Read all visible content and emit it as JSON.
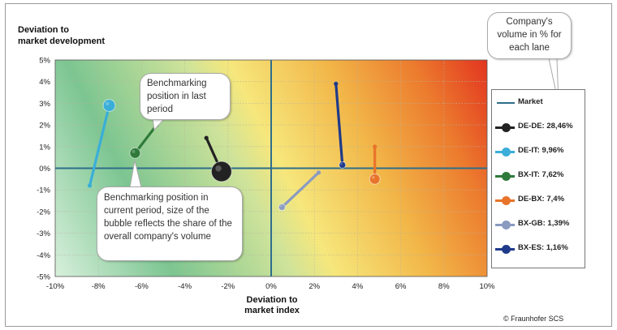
{
  "chart_data": {
    "type": "scatter",
    "title": "",
    "ylabel": "Deviation to market development",
    "xlabel": "Deviation to market index",
    "xlim": [
      -10,
      10
    ],
    "ylim": [
      -5,
      5
    ],
    "xticks": [
      "-10%",
      "-8%",
      "-6%",
      "-4%",
      "-2%",
      "0%",
      "2%",
      "4%",
      "6%",
      "8%",
      "10%"
    ],
    "yticks": [
      "5%",
      "4%",
      "3%",
      "2%",
      "1%",
      "0%",
      "-1%",
      "-2%",
      "-3%",
      "-4%",
      "-5%"
    ],
    "grid": true,
    "legend_position": "right",
    "market_line": {
      "label": "Market",
      "color": "#2e6e8a"
    },
    "series": [
      {
        "name": "DE-DE: 28,46%",
        "color": "#222222",
        "last": [
          -3,
          1.4
        ],
        "current": [
          -2.3,
          -0.15
        ],
        "volume": 28.46
      },
      {
        "name": "DE-IT: 9,96%",
        "color": "#3aaed8",
        "last": [
          -8.4,
          -0.8
        ],
        "current": [
          -7.5,
          2.9
        ],
        "volume": 9.96
      },
      {
        "name": "BX-IT: 7,62%",
        "color": "#2f7a3a",
        "last": [
          -5.3,
          2.0
        ],
        "current": [
          -6.3,
          0.7
        ],
        "volume": 7.62
      },
      {
        "name": "DE-BX: 7,4%",
        "color": "#e8742a",
        "last": [
          4.8,
          1.0
        ],
        "current": [
          4.8,
          -0.5
        ],
        "volume": 7.4
      },
      {
        "name": "BX-GB: 1,39%",
        "color": "#8a9ac0",
        "last": [
          2.2,
          -0.2
        ],
        "current": [
          0.5,
          -1.8
        ],
        "volume": 1.39
      },
      {
        "name": "BX-ES: 1,16%",
        "color": "#1f3a8a",
        "last": [
          3.0,
          3.9
        ],
        "current": [
          3.3,
          0.15
        ],
        "volume": 1.16
      }
    ]
  },
  "callouts": {
    "volume": "Company's volume in % for each lane",
    "last_period": "Benchmarking position in last period",
    "current_period": "Benchmarking position in current period, size of the bubble reflects the share of the overall company's volume"
  },
  "axis_labels": {
    "y_line1": "Deviation to",
    "y_line2": "market development",
    "x_line1": "Deviation to",
    "x_line2": "market index"
  },
  "credit": "© Fraunhofer SCS"
}
